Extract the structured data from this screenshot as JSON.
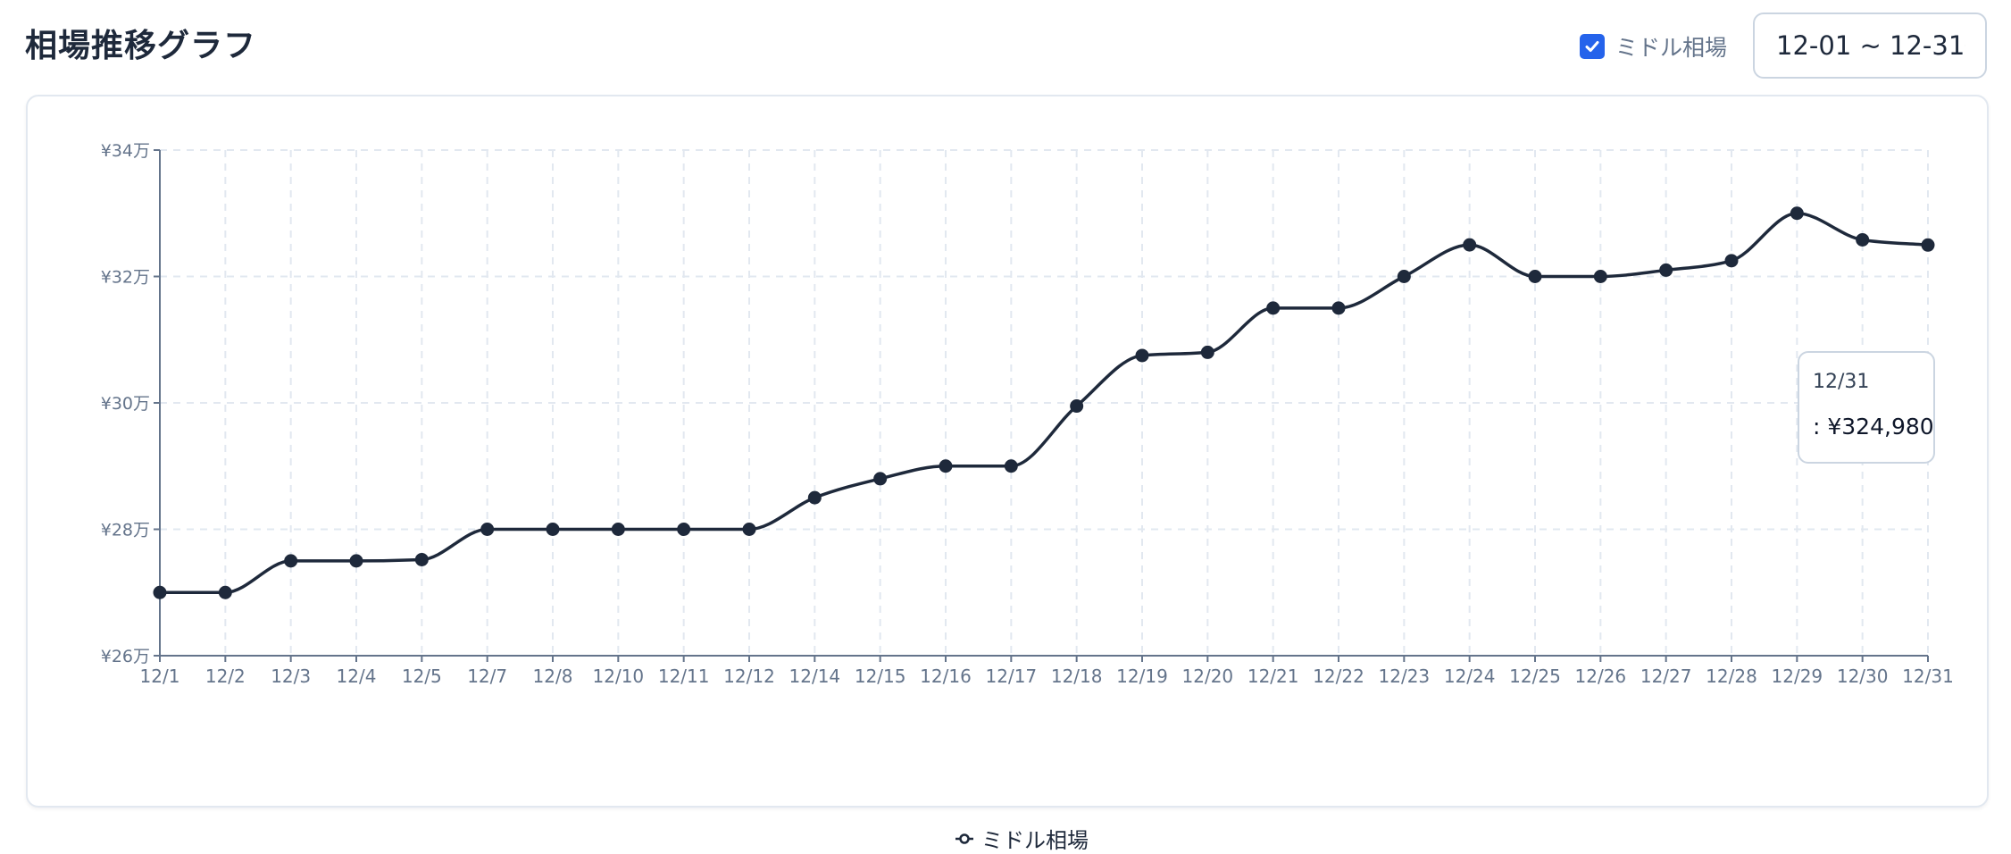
{
  "page": {
    "title": "相場推移グラフ"
  },
  "controls": {
    "toggle_label": "ミドル相場",
    "toggle_checked": true,
    "date_range": "12-01 ~ 12-31"
  },
  "tooltip": {
    "date": "12/31",
    "value": ": ¥324,980"
  },
  "legend": {
    "label": "ミドル相場"
  },
  "colors": {
    "line": "#1e293b",
    "accent": "#2563eb",
    "grid": "#e2e8f0",
    "axis": "#64748b"
  },
  "chart_data": {
    "type": "line",
    "title": "",
    "xlabel": "",
    "ylabel": "",
    "ylim": [
      260000,
      340000
    ],
    "yticks": [
      260000,
      280000,
      300000,
      320000,
      340000
    ],
    "ytick_labels": [
      "¥26万",
      "¥28万",
      "¥30万",
      "¥32万",
      "¥34万"
    ],
    "grid": true,
    "legend_position": "bottom",
    "categories": [
      "12/1",
      "12/2",
      "12/3",
      "12/4",
      "12/5",
      "12/7",
      "12/8",
      "12/10",
      "12/11",
      "12/12",
      "12/14",
      "12/15",
      "12/16",
      "12/17",
      "12/18",
      "12/19",
      "12/20",
      "12/21",
      "12/22",
      "12/23",
      "12/24",
      "12/25",
      "12/26",
      "12/27",
      "12/28",
      "12/29",
      "12/30",
      "12/31"
    ],
    "series": [
      {
        "name": "ミドル相場",
        "values": [
          270000,
          270000,
          275000,
          275000,
          275200,
          280000,
          280000,
          280000,
          280000,
          280000,
          285000,
          288000,
          290000,
          290000,
          299500,
          307500,
          308000,
          315000,
          315000,
          320000,
          325000,
          320000,
          320000,
          321000,
          322500,
          330000,
          325800,
          324980
        ]
      }
    ]
  }
}
